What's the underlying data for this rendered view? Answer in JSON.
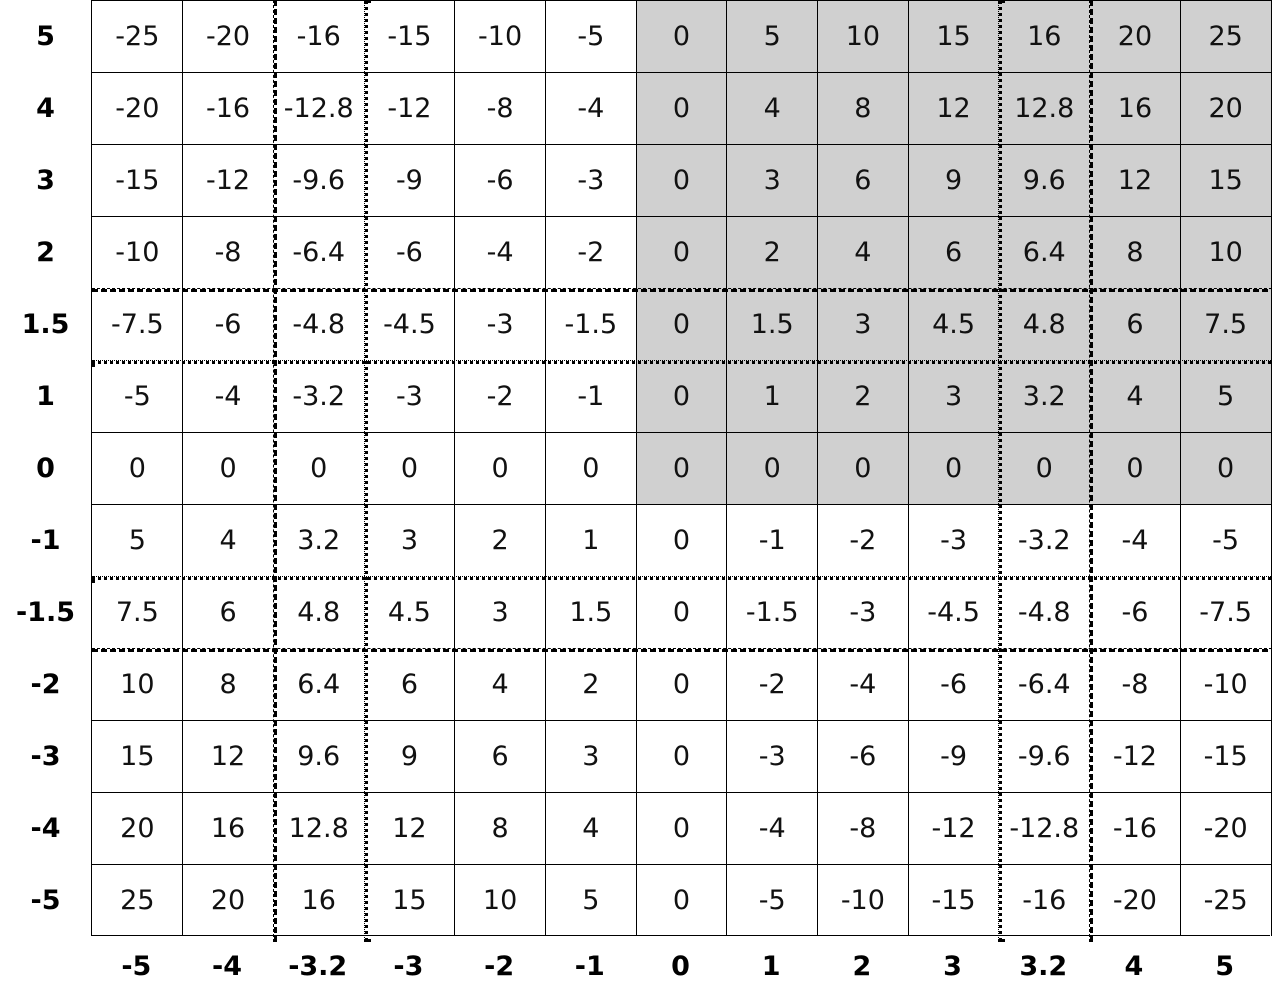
{
  "chart_data": {
    "type": "table",
    "title": "",
    "row_labels": [
      "5",
      "4",
      "3",
      "2",
      "1.5",
      "1",
      "0",
      "-1",
      "-1.5",
      "-2",
      "-3",
      "-4",
      "-5"
    ],
    "col_labels": [
      "-5",
      "-4",
      "-3.2",
      "-3",
      "-2",
      "-1",
      "0",
      "1",
      "2",
      "3",
      "3.2",
      "4",
      "5"
    ],
    "rows": [
      5,
      4,
      3,
      2,
      1.5,
      1,
      0,
      -1,
      -1.5,
      -2,
      -3,
      -4,
      -5
    ],
    "cols": [
      -5,
      -4,
      -3.2,
      -3,
      -2,
      -1,
      0,
      1,
      2,
      3,
      3.2,
      4,
      5
    ],
    "cell_rule": "row × column",
    "shaded_region": "row >= 0 and column >= 0",
    "shade_color": "#d0d0d0",
    "dashed_lines": {
      "columns": [
        "left of -3.2",
        "right of 3.2"
      ],
      "rows": [
        "above 1.5",
        "below -1.5"
      ]
    },
    "dotted_lines": {
      "columns": [
        "right of -3.2",
        "left of 3.2"
      ],
      "rows": [
        "below 1.5",
        "above -1.5"
      ]
    }
  }
}
